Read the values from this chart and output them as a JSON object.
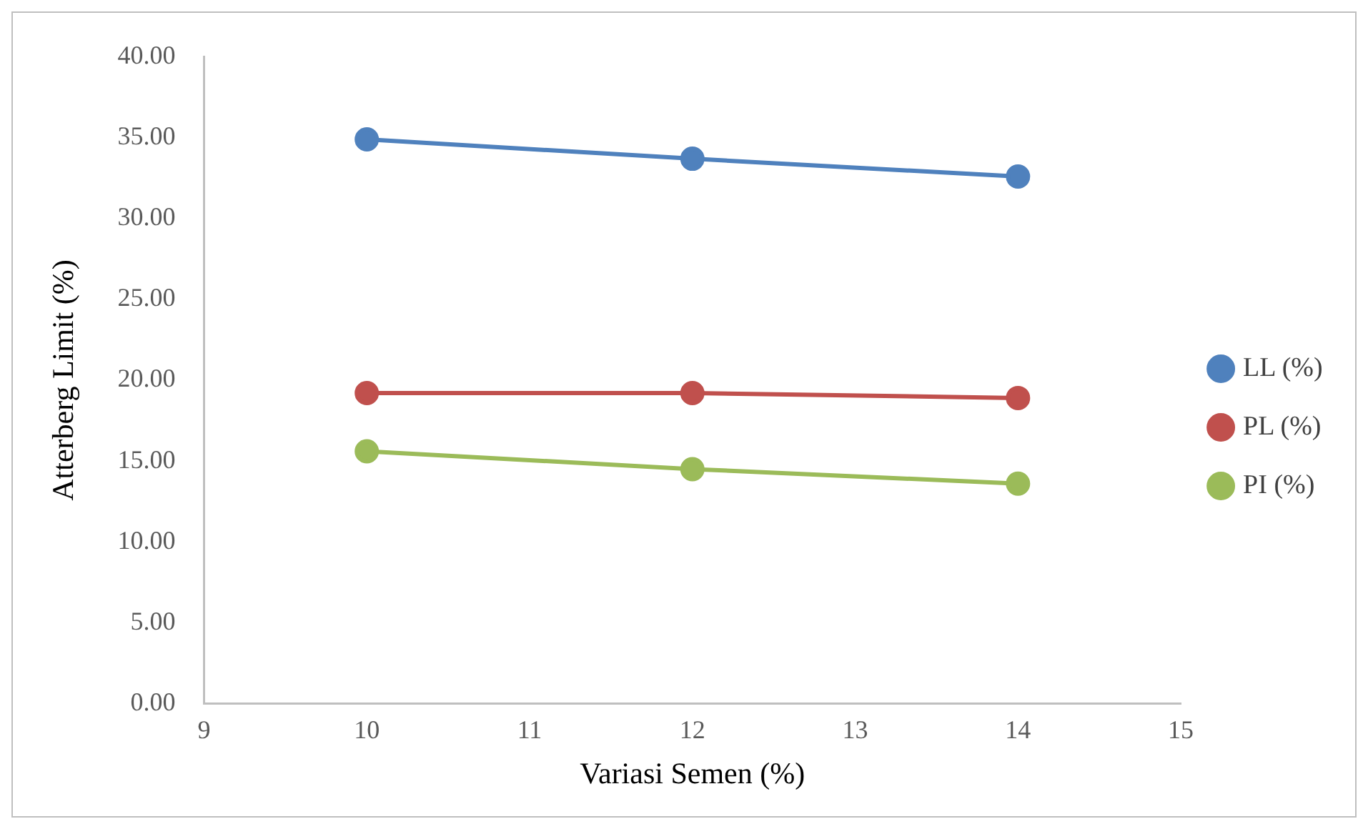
{
  "chart_data": {
    "type": "line",
    "xlabel": "Variasi Semen (%)",
    "ylabel": "Atterberg Limit (%)",
    "x": [
      10,
      12,
      14
    ],
    "series": [
      {
        "name": "LL (%)",
        "color": "#4f81bd",
        "values": [
          34.9,
          33.7,
          32.6
        ]
      },
      {
        "name": "PL (%)",
        "color": "#c0504d",
        "values": [
          19.2,
          19.2,
          18.9
        ]
      },
      {
        "name": "PI (%)",
        "color": "#9bbb59",
        "values": [
          15.6,
          14.5,
          13.6
        ]
      }
    ],
    "xlim": [
      9,
      15
    ],
    "xticks": [
      9,
      10,
      11,
      12,
      13,
      14,
      15
    ],
    "ylim": [
      0,
      40
    ],
    "yticks": [
      {
        "value": 0,
        "label": "0.00"
      },
      {
        "value": 5,
        "label": "5.00"
      },
      {
        "value": 10,
        "label": "10.00"
      },
      {
        "value": 15,
        "label": "15.00"
      },
      {
        "value": 20,
        "label": "20.00"
      },
      {
        "value": 25,
        "label": "25.00"
      },
      {
        "value": 30,
        "label": "30.00"
      },
      {
        "value": 35,
        "label": "35.00"
      },
      {
        "value": 40,
        "label": "40.00"
      }
    ],
    "grid": false,
    "legend": "right",
    "marker": "circle",
    "line_style": "solid"
  }
}
